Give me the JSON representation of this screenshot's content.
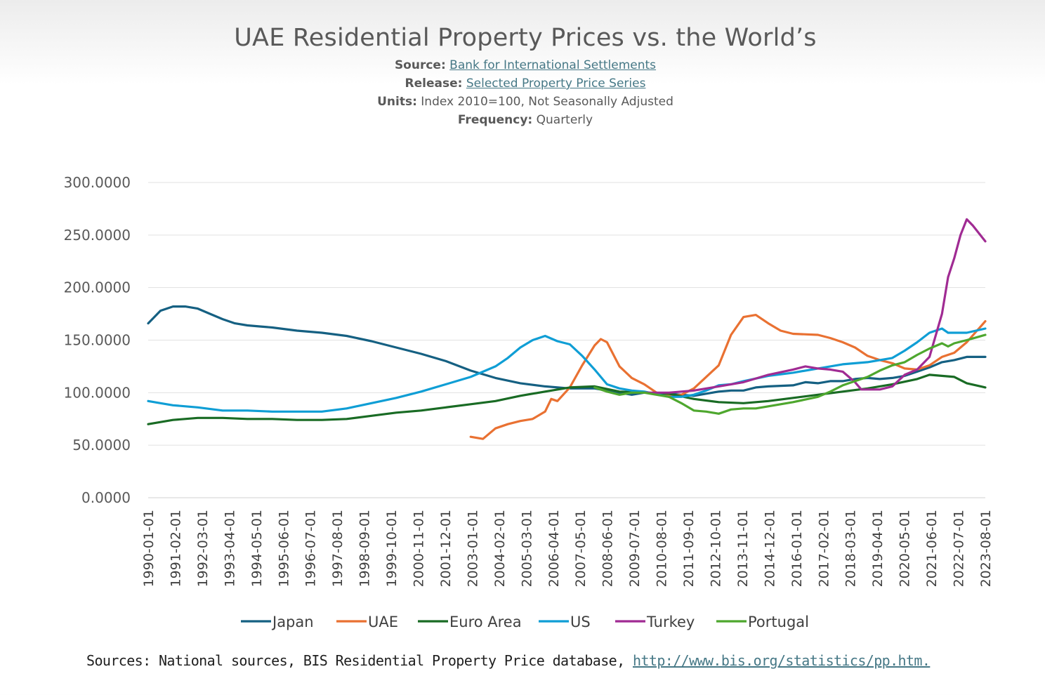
{
  "header": {
    "title": "UAE Residential Property Prices vs. the World’s",
    "source_label": "Source:",
    "source_value": "Bank for International Settlements",
    "release_label": "Release:",
    "release_value": "Selected Property Price Series",
    "units_label": "Units:",
    "units_value": "Index 2010=100, Not Seasonally Adjusted",
    "frequency_label": "Frequency:",
    "frequency_value": "Quarterly"
  },
  "footer": {
    "text": "Sources: National sources, BIS Residential Property Price database, ",
    "link": "http://www.bis.org/statistics/pp.htm."
  },
  "chart_data": {
    "type": "line",
    "title": "UAE Residential Property Prices vs. the World’s",
    "ylim": [
      0,
      300
    ],
    "grid": true,
    "legend_position": "bottom",
    "y_ticks": [
      "0.0000",
      "50.0000",
      "100.0000",
      "150.0000",
      "200.0000",
      "250.0000",
      "300.0000"
    ],
    "x_ticks": [
      "1990-01-01",
      "1991-02-01",
      "1992-03-01",
      "1993-04-01",
      "1994-05-01",
      "1995-06-01",
      "1996-07-01",
      "1997-08-01",
      "1998-09-01",
      "1999-10-01",
      "2000-11-01",
      "2001-12-01",
      "2003-01-01",
      "2004-02-01",
      "2005-03-01",
      "2006-04-01",
      "2007-05-01",
      "2008-06-01",
      "2009-07-01",
      "2010-08-01",
      "2011-09-01",
      "2012-10-01",
      "2013-11-01",
      "2014-12-01",
      "2016-01-01",
      "2017-02-01",
      "2018-03-01",
      "2019-04-01",
      "2020-05-01",
      "2021-06-01",
      "2022-07-01",
      "2023-08-01"
    ],
    "x_range": [
      "1990-01-01",
      "2023-10-01"
    ],
    "series": [
      {
        "name": "Japan",
        "color": "#156082",
        "points": [
          [
            "1990-01-01",
            166
          ],
          [
            "1990-07-01",
            178
          ],
          [
            "1991-01-01",
            182
          ],
          [
            "1991-07-01",
            182
          ],
          [
            "1992-01-01",
            180
          ],
          [
            "1992-07-01",
            175
          ],
          [
            "1993-01-01",
            170
          ],
          [
            "1993-07-01",
            166
          ],
          [
            "1994-01-01",
            164
          ],
          [
            "1994-07-01",
            163
          ],
          [
            "1995-01-01",
            162
          ],
          [
            "1996-01-01",
            159
          ],
          [
            "1997-01-01",
            157
          ],
          [
            "1998-01-01",
            154
          ],
          [
            "1999-01-01",
            149
          ],
          [
            "2000-01-01",
            143
          ],
          [
            "2001-01-01",
            137
          ],
          [
            "2002-01-01",
            130
          ],
          [
            "2003-01-01",
            121
          ],
          [
            "2004-01-01",
            114
          ],
          [
            "2005-01-01",
            109
          ],
          [
            "2006-01-01",
            106
          ],
          [
            "2007-01-01",
            104
          ],
          [
            "2008-01-01",
            104
          ],
          [
            "2008-07-01",
            102
          ],
          [
            "2009-07-01",
            98
          ],
          [
            "2010-01-01",
            100
          ],
          [
            "2011-01-01",
            99
          ],
          [
            "2012-01-01",
            97
          ],
          [
            "2012-07-01",
            99
          ],
          [
            "2013-01-01",
            101
          ],
          [
            "2013-07-01",
            102
          ],
          [
            "2014-01-01",
            102
          ],
          [
            "2014-07-01",
            105
          ],
          [
            "2015-01-01",
            106
          ],
          [
            "2016-01-01",
            107
          ],
          [
            "2016-07-01",
            110
          ],
          [
            "2017-01-01",
            109
          ],
          [
            "2017-07-01",
            111
          ],
          [
            "2018-01-01",
            111
          ],
          [
            "2018-07-01",
            113
          ],
          [
            "2019-01-01",
            114
          ],
          [
            "2019-07-01",
            113
          ],
          [
            "2020-01-01",
            114
          ],
          [
            "2020-07-01",
            116
          ],
          [
            "2021-01-01",
            120
          ],
          [
            "2021-07-01",
            124
          ],
          [
            "2022-01-01",
            129
          ],
          [
            "2022-07-01",
            131
          ],
          [
            "2023-01-01",
            134
          ],
          [
            "2023-10-01",
            134
          ]
        ]
      },
      {
        "name": "UAE",
        "color": "#E97132",
        "points": [
          [
            "2003-01-01",
            58
          ],
          [
            "2003-07-01",
            56
          ],
          [
            "2004-01-01",
            66
          ],
          [
            "2004-07-01",
            70
          ],
          [
            "2005-01-01",
            73
          ],
          [
            "2005-07-01",
            75
          ],
          [
            "2006-01-01",
            82
          ],
          [
            "2006-04-01",
            94
          ],
          [
            "2006-07-01",
            92
          ],
          [
            "2007-01-01",
            105
          ],
          [
            "2007-07-01",
            126
          ],
          [
            "2008-01-01",
            145
          ],
          [
            "2008-04-01",
            151
          ],
          [
            "2008-07-01",
            148
          ],
          [
            "2009-01-01",
            125
          ],
          [
            "2009-07-01",
            114
          ],
          [
            "2010-01-01",
            108
          ],
          [
            "2010-07-01",
            100
          ],
          [
            "2011-01-01",
            97
          ],
          [
            "2011-07-01",
            98
          ],
          [
            "2012-01-01",
            104
          ],
          [
            "2012-07-01",
            115
          ],
          [
            "2013-01-01",
            126
          ],
          [
            "2013-07-01",
            155
          ],
          [
            "2014-01-01",
            172
          ],
          [
            "2014-07-01",
            174
          ],
          [
            "2015-01-01",
            166
          ],
          [
            "2015-07-01",
            159
          ],
          [
            "2016-01-01",
            156
          ],
          [
            "2017-01-01",
            155
          ],
          [
            "2017-07-01",
            152
          ],
          [
            "2018-01-01",
            148
          ],
          [
            "2018-07-01",
            143
          ],
          [
            "2019-01-01",
            135
          ],
          [
            "2019-07-01",
            131
          ],
          [
            "2020-01-01",
            128
          ],
          [
            "2020-07-01",
            123
          ],
          [
            "2021-01-01",
            122
          ],
          [
            "2021-07-01",
            126
          ],
          [
            "2022-01-01",
            134
          ],
          [
            "2022-07-01",
            138
          ],
          [
            "2023-01-01",
            148
          ],
          [
            "2023-10-01",
            168
          ]
        ]
      },
      {
        "name": "Euro Area",
        "color": "#196B24",
        "points": [
          [
            "1990-01-01",
            70
          ],
          [
            "1991-01-01",
            74
          ],
          [
            "1992-01-01",
            76
          ],
          [
            "1993-01-01",
            76
          ],
          [
            "1994-01-01",
            75
          ],
          [
            "1995-01-01",
            75
          ],
          [
            "1996-01-01",
            74
          ],
          [
            "1997-01-01",
            74
          ],
          [
            "1998-01-01",
            75
          ],
          [
            "1999-01-01",
            78
          ],
          [
            "2000-01-01",
            81
          ],
          [
            "2001-01-01",
            83
          ],
          [
            "2002-01-01",
            86
          ],
          [
            "2003-01-01",
            89
          ],
          [
            "2004-01-01",
            92
          ],
          [
            "2005-01-01",
            97
          ],
          [
            "2006-01-01",
            101
          ],
          [
            "2007-01-01",
            105
          ],
          [
            "2008-01-01",
            106
          ],
          [
            "2009-01-01",
            101
          ],
          [
            "2010-01-01",
            100
          ],
          [
            "2011-01-01",
            99
          ],
          [
            "2012-01-01",
            94
          ],
          [
            "2013-01-01",
            91
          ],
          [
            "2014-01-01",
            90
          ],
          [
            "2015-01-01",
            92
          ],
          [
            "2016-01-01",
            95
          ],
          [
            "2017-01-01",
            98
          ],
          [
            "2018-01-01",
            101
          ],
          [
            "2019-01-01",
            104
          ],
          [
            "2020-01-01",
            108
          ],
          [
            "2021-01-01",
            113
          ],
          [
            "2021-07-01",
            117
          ],
          [
            "2022-07-01",
            115
          ],
          [
            "2023-01-01",
            109
          ],
          [
            "2023-10-01",
            105
          ]
        ]
      },
      {
        "name": "US",
        "color": "#0F9ED5",
        "points": [
          [
            "1990-01-01",
            92
          ],
          [
            "1990-07-01",
            90
          ],
          [
            "1991-01-01",
            88
          ],
          [
            "1992-01-01",
            86
          ],
          [
            "1993-01-01",
            83
          ],
          [
            "1994-01-01",
            83
          ],
          [
            "1995-01-01",
            82
          ],
          [
            "1996-01-01",
            82
          ],
          [
            "1997-01-01",
            82
          ],
          [
            "1998-01-01",
            85
          ],
          [
            "1999-01-01",
            90
          ],
          [
            "2000-01-01",
            95
          ],
          [
            "2001-01-01",
            101
          ],
          [
            "2002-01-01",
            108
          ],
          [
            "2003-01-01",
            115
          ],
          [
            "2004-01-01",
            125
          ],
          [
            "2004-07-01",
            133
          ],
          [
            "2005-01-01",
            143
          ],
          [
            "2005-07-01",
            150
          ],
          [
            "2006-01-01",
            154
          ],
          [
            "2006-07-01",
            149
          ],
          [
            "2007-01-01",
            146
          ],
          [
            "2007-07-01",
            135
          ],
          [
            "2008-01-01",
            122
          ],
          [
            "2008-07-01",
            108
          ],
          [
            "2009-01-01",
            104
          ],
          [
            "2009-07-01",
            102
          ],
          [
            "2010-01-01",
            101
          ],
          [
            "2011-01-01",
            96
          ],
          [
            "2011-07-01",
            96
          ],
          [
            "2012-01-01",
            98
          ],
          [
            "2012-07-01",
            102
          ],
          [
            "2013-01-01",
            107
          ],
          [
            "2013-07-01",
            108
          ],
          [
            "2014-01-01",
            111
          ],
          [
            "2015-01-01",
            116
          ],
          [
            "2016-01-01",
            119
          ],
          [
            "2017-01-01",
            123
          ],
          [
            "2018-01-01",
            127
          ],
          [
            "2019-01-01",
            129
          ],
          [
            "2020-01-01",
            133
          ],
          [
            "2020-07-01",
            140
          ],
          [
            "2021-01-01",
            148
          ],
          [
            "2021-07-01",
            157
          ],
          [
            "2022-01-01",
            161
          ],
          [
            "2022-04-01",
            157
          ],
          [
            "2023-01-01",
            157
          ],
          [
            "2023-10-01",
            161
          ]
        ]
      },
      {
        "name": "Turkey",
        "color": "#A02B93",
        "points": [
          [
            "2010-01-01",
            100
          ],
          [
            "2011-01-01",
            100
          ],
          [
            "2012-01-01",
            102
          ],
          [
            "2013-01-01",
            106
          ],
          [
            "2014-01-01",
            110
          ],
          [
            "2015-01-01",
            117
          ],
          [
            "2016-01-01",
            122
          ],
          [
            "2016-07-01",
            125
          ],
          [
            "2017-01-01",
            123
          ],
          [
            "2017-07-01",
            122
          ],
          [
            "2018-01-01",
            120
          ],
          [
            "2018-07-01",
            110
          ],
          [
            "2018-10-01",
            103
          ],
          [
            "2019-07-01",
            103
          ],
          [
            "2020-01-01",
            106
          ],
          [
            "2020-07-01",
            117
          ],
          [
            "2021-01-01",
            122
          ],
          [
            "2021-07-01",
            134
          ],
          [
            "2022-01-01",
            175
          ],
          [
            "2022-04-01",
            210
          ],
          [
            "2022-07-01",
            228
          ],
          [
            "2022-10-01",
            250
          ],
          [
            "2023-01-01",
            265
          ],
          [
            "2023-04-01",
            259
          ],
          [
            "2023-10-01",
            244
          ]
        ]
      },
      {
        "name": "Portugal",
        "color": "#4EA72E",
        "points": [
          [
            "2008-01-01",
            105
          ],
          [
            "2008-07-01",
            101
          ],
          [
            "2009-01-01",
            98
          ],
          [
            "2009-07-01",
            100
          ],
          [
            "2010-01-01",
            100
          ],
          [
            "2010-07-01",
            98
          ],
          [
            "2011-01-01",
            96
          ],
          [
            "2011-07-01",
            90
          ],
          [
            "2012-01-01",
            83
          ],
          [
            "2012-07-01",
            82
          ],
          [
            "2013-01-01",
            80
          ],
          [
            "2013-07-01",
            84
          ],
          [
            "2014-01-01",
            85
          ],
          [
            "2014-07-01",
            85
          ],
          [
            "2015-01-01",
            87
          ],
          [
            "2016-01-01",
            91
          ],
          [
            "2017-01-01",
            96
          ],
          [
            "2017-07-01",
            101
          ],
          [
            "2018-01-01",
            107
          ],
          [
            "2018-07-01",
            111
          ],
          [
            "2019-01-01",
            115
          ],
          [
            "2019-07-01",
            121
          ],
          [
            "2020-01-01",
            126
          ],
          [
            "2020-07-01",
            129
          ],
          [
            "2021-01-01",
            136
          ],
          [
            "2021-07-01",
            142
          ],
          [
            "2022-01-01",
            147
          ],
          [
            "2022-04-01",
            144
          ],
          [
            "2022-07-01",
            147
          ],
          [
            "2023-01-01",
            150
          ],
          [
            "2023-10-01",
            155
          ]
        ]
      }
    ]
  }
}
